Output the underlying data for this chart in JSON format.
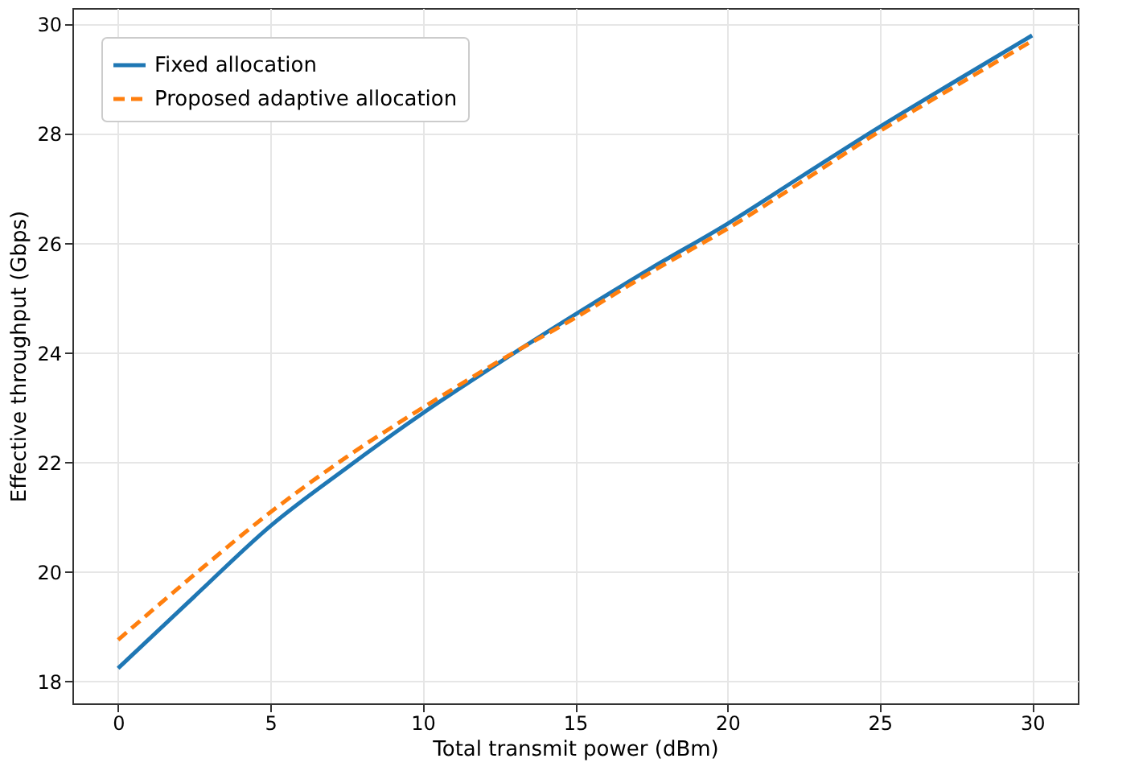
{
  "chart_data": {
    "type": "line",
    "xlabel": "Total transmit power (dBm)",
    "ylabel": "Effective throughput (Gbps)",
    "x": [
      0,
      2.5,
      5,
      7.5,
      10,
      12.5,
      15,
      17.5,
      20,
      22.5,
      25,
      27.5,
      30
    ],
    "series": [
      {
        "name": "Fixed allocation",
        "color": "#1f77b4",
        "line_style": "solid",
        "values": [
          18.24,
          19.55,
          20.84,
          21.9,
          22.9,
          23.82,
          24.7,
          25.55,
          26.36,
          27.25,
          28.13,
          28.97,
          29.8
        ]
      },
      {
        "name": "Proposed adaptive allocation",
        "color": "#ff7f0e",
        "line_style": "dashed",
        "values": [
          18.76,
          19.95,
          21.09,
          22.1,
          23.0,
          23.85,
          24.64,
          25.48,
          26.27,
          27.15,
          28.05,
          28.88,
          29.7
        ]
      }
    ],
    "xlim": [
      -1.5,
      31.5
    ],
    "ylim": [
      17.6,
      30.3
    ],
    "xticks": [
      0,
      5,
      10,
      15,
      20,
      25,
      30
    ],
    "yticks": [
      18,
      20,
      22,
      24,
      26,
      28,
      30
    ],
    "grid": true,
    "legend": "top left",
    "marker": "none"
  }
}
